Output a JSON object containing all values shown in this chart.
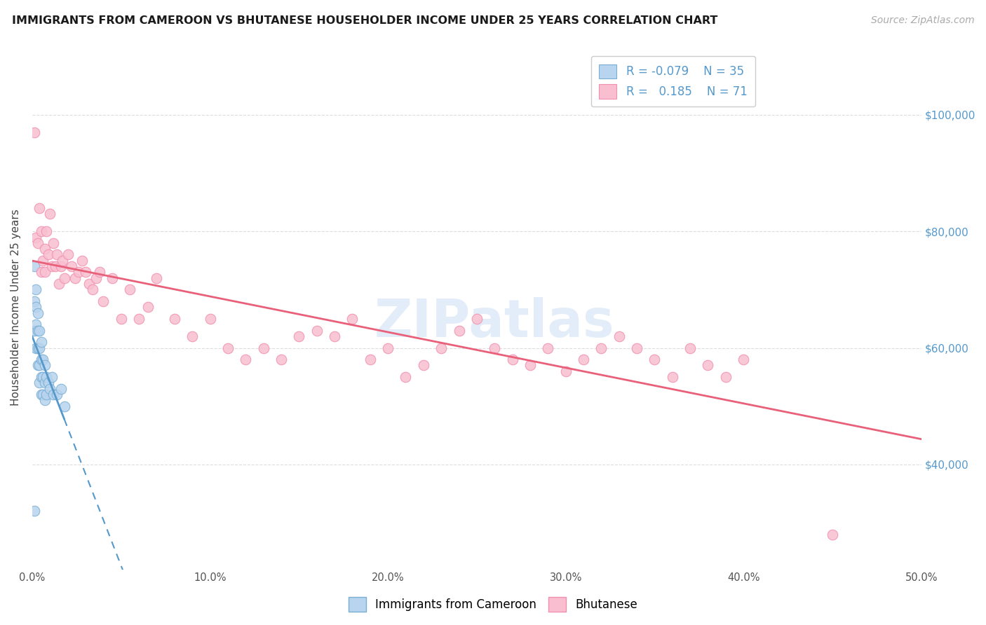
{
  "title": "IMMIGRANTS FROM CAMEROON VS BHUTANESE HOUSEHOLDER INCOME UNDER 25 YEARS CORRELATION CHART",
  "source": "Source: ZipAtlas.com",
  "ylabel": "Householder Income Under 25 years",
  "ytick_positions": [
    40000,
    60000,
    80000,
    100000
  ],
  "ytick_labels": [
    "$40,000",
    "$60,000",
    "$80,000",
    "$100,000"
  ],
  "xlim": [
    0.0,
    0.5
  ],
  "ylim": [
    22000,
    112000
  ],
  "watermark": "ZIPatlas",
  "color_blue_fill": "#b8d4ee",
  "color_blue_edge": "#7aafd4",
  "color_pink_fill": "#f9bfd0",
  "color_pink_edge": "#f090b0",
  "color_blue_line": "#5599cc",
  "color_pink_line": "#e8607a",
  "color_grid": "#dddddd",
  "legend_entries": [
    {
      "label": "R = -0.079    N = 35",
      "color_fill": "#b8d4ee",
      "color_edge": "#7aafd4"
    },
    {
      "label": "R =   0.185    N = 71",
      "color_fill": "#f9bfd0",
      "color_edge": "#f090b0"
    }
  ],
  "bottom_legend": [
    "Immigrants from Cameroon",
    "Bhutanese"
  ],
  "cameroon_x": [
    0.001,
    0.001,
    0.001,
    0.002,
    0.002,
    0.002,
    0.002,
    0.003,
    0.003,
    0.003,
    0.003,
    0.004,
    0.004,
    0.004,
    0.004,
    0.005,
    0.005,
    0.005,
    0.005,
    0.006,
    0.006,
    0.006,
    0.007,
    0.007,
    0.007,
    0.008,
    0.008,
    0.009,
    0.01,
    0.011,
    0.012,
    0.014,
    0.016,
    0.018,
    0.001
  ],
  "cameroon_y": [
    74000,
    68000,
    63000,
    70000,
    67000,
    64000,
    60000,
    66000,
    63000,
    60000,
    57000,
    63000,
    60000,
    57000,
    54000,
    61000,
    58000,
    55000,
    52000,
    58000,
    55000,
    52000,
    57000,
    54000,
    51000,
    55000,
    52000,
    54000,
    53000,
    55000,
    52000,
    52000,
    53000,
    50000,
    32000
  ],
  "bhutanese_x": [
    0.001,
    0.002,
    0.003,
    0.004,
    0.005,
    0.005,
    0.006,
    0.007,
    0.007,
    0.008,
    0.009,
    0.01,
    0.011,
    0.012,
    0.013,
    0.014,
    0.015,
    0.016,
    0.017,
    0.018,
    0.02,
    0.022,
    0.024,
    0.026,
    0.028,
    0.03,
    0.032,
    0.034,
    0.036,
    0.038,
    0.04,
    0.045,
    0.05,
    0.055,
    0.06,
    0.065,
    0.07,
    0.08,
    0.09,
    0.1,
    0.11,
    0.12,
    0.13,
    0.14,
    0.15,
    0.16,
    0.17,
    0.18,
    0.19,
    0.2,
    0.21,
    0.22,
    0.23,
    0.24,
    0.25,
    0.26,
    0.27,
    0.28,
    0.29,
    0.3,
    0.31,
    0.32,
    0.33,
    0.34,
    0.35,
    0.36,
    0.37,
    0.38,
    0.39,
    0.4,
    0.45
  ],
  "bhutanese_y": [
    97000,
    79000,
    78000,
    84000,
    73000,
    80000,
    75000,
    77000,
    73000,
    80000,
    76000,
    83000,
    74000,
    78000,
    74000,
    76000,
    71000,
    74000,
    75000,
    72000,
    76000,
    74000,
    72000,
    73000,
    75000,
    73000,
    71000,
    70000,
    72000,
    73000,
    68000,
    72000,
    65000,
    70000,
    65000,
    67000,
    72000,
    65000,
    62000,
    65000,
    60000,
    58000,
    60000,
    58000,
    62000,
    63000,
    62000,
    65000,
    58000,
    60000,
    55000,
    57000,
    60000,
    63000,
    65000,
    60000,
    58000,
    57000,
    60000,
    56000,
    58000,
    60000,
    62000,
    60000,
    58000,
    55000,
    60000,
    57000,
    55000,
    58000,
    28000
  ]
}
